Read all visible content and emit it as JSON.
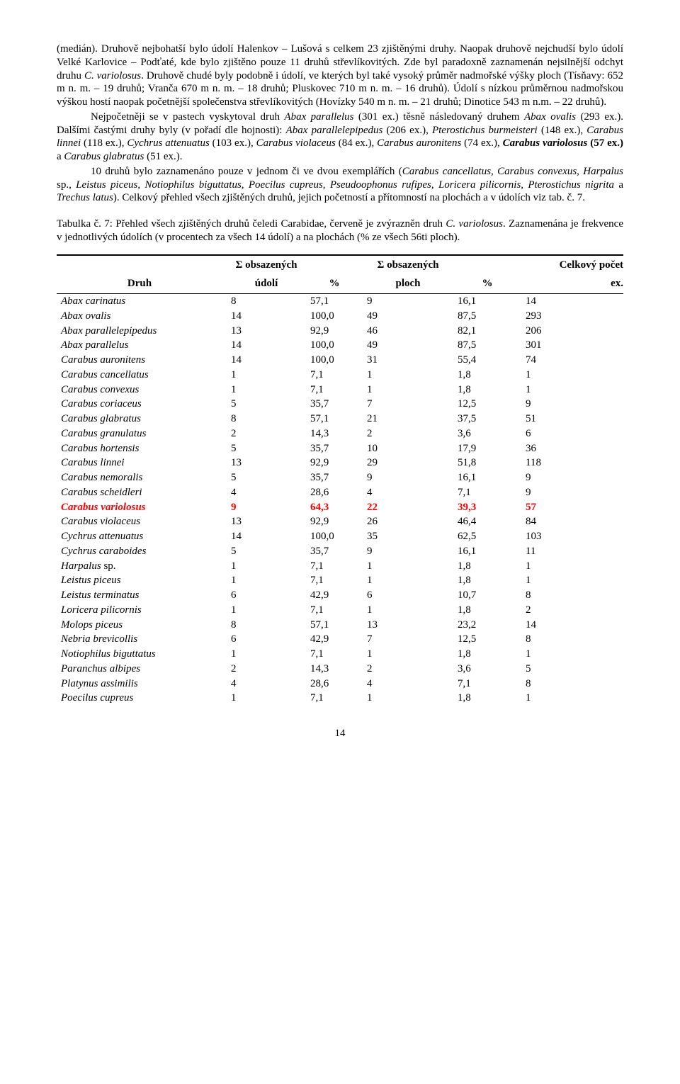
{
  "paragraphs": {
    "p1_prefix": "(medián). Druhově nejbohatší bylo údolí Halenkov – Lušová s celkem 23 zjištěnými druhy. Naopak druhově nejchudší bylo údolí Velké Karlovice – Podťaté, kde bylo zjištěno pouze 11 druhů střevlíkovitých. Zde byl paradoxně zaznamenán nejsilnější odchyt druhu ",
    "p1_sp": "C. variolosus",
    "p1_suffix": ". Druhově chudé byly podobně i údolí, ve kterých byl také vysoký průměr nadmořské výšky ploch (Tísňavy: 652 m n. m. – 19 druhů; Vranča 670 m n. m. – 18 druhů; Pluskovec 710 m n. m. – 16 druhů). Údolí s nízkou průměrnou nadmořskou výškou hostí naopak početnější společenstva střevlíkovitých (Hovízky 540 m n. m. – 21 druhů; Dinotice 543 m n.m. – 22 druhů).",
    "p2a": "Nejpočetněji se v pastech vyskytoval druh ",
    "p2_sp1": "Abax parallelus",
    "p2b": " (301 ex.) těsně následovaný druhem ",
    "p2_sp2": "Abax ovalis",
    "p2c": " (293 ex.). Dalšími častými druhy byly (v pořadí dle hojnosti): ",
    "p2_sp3": "Abax parallelepipedus",
    "p2d": " (206 ex.), ",
    "p2_sp4": "Pterostichus burmeisteri",
    "p2e": " (148 ex.), ",
    "p2_sp5": "Carabus linnei",
    "p2f": " (118 ex.), ",
    "p2_sp6": "Cychrus attenuatus",
    "p2g": " (103 ex.), ",
    "p2_sp7": "Carabus violaceus",
    "p2h": " (84 ex.), ",
    "p2_sp8": "Carabus auronitens",
    "p2i": " (74 ex.), ",
    "p2_sp9": "Carabus variolosus",
    "p2j": " (57 ex.)",
    "p2k": " a ",
    "p2_sp10": "Carabus glabratus",
    "p2l": " (51 ex.).",
    "p3a": "10 druhů bylo zaznamenáno pouze v jednom či ve dvou exemplářích (",
    "p3_list": "Carabus cancellatus, Carabus convexus, Harpalus ",
    "p3_sp": "sp.",
    "p3_list2": ", Leistus piceus, Notiophilus biguttatus, Poecilus cupreus, Pseudoophonus rufipes, Loricera pilicornis, Pterostichus nigrita ",
    "p3_a": "a ",
    "p3_last": "Trechus latus",
    "p3b": "). Celkový přehled všech zjištěných druhů, jejich početností a přítomností na plochách a v údolích viz tab. č. 7.",
    "captionA": "Tabulka č. 7: Přehled všech zjištěných druhů čeledi Carabidae, červeně je zvýrazněn druh ",
    "caption_sp": "C. variolosus",
    "captionB": ". Zaznamenána je frekvence v jednotlivých údolích (v procentech za všech 14 údolí) a na plochách (% ze všech 56ti ploch)."
  },
  "table": {
    "headers": {
      "druh": "Druh",
      "sum_udoli_l1": "Σ obsazených",
      "sum_udoli_l2": "údolí",
      "pct1": "%",
      "sum_ploch_l1": "Σ obsazených",
      "sum_ploch_l2": "ploch",
      "pct2": "%",
      "ex_l1": "Celkový počet",
      "ex_l2": "ex."
    },
    "rows": [
      {
        "hl": false,
        "sp": "Abax carinatus",
        "u": "8",
        "up": "57,1",
        "p": "9",
        "pp": "16,1",
        "ex": "14"
      },
      {
        "hl": false,
        "sp": "Abax ovalis",
        "u": "14",
        "up": "100,0",
        "p": "49",
        "pp": "87,5",
        "ex": "293"
      },
      {
        "hl": false,
        "sp": "Abax parallelepipedus",
        "u": "13",
        "up": "92,9",
        "p": "46",
        "pp": "82,1",
        "ex": "206"
      },
      {
        "hl": false,
        "sp": "Abax parallelus",
        "u": "14",
        "up": "100,0",
        "p": "49",
        "pp": "87,5",
        "ex": "301"
      },
      {
        "hl": false,
        "sp": "Carabus auronitens",
        "u": "14",
        "up": "100,0",
        "p": "31",
        "pp": "55,4",
        "ex": "74"
      },
      {
        "hl": false,
        "sp": "Carabus cancellatus",
        "u": "1",
        "up": "7,1",
        "p": "1",
        "pp": "1,8",
        "ex": "1"
      },
      {
        "hl": false,
        "sp": "Carabus convexus",
        "u": "1",
        "up": "7,1",
        "p": "1",
        "pp": "1,8",
        "ex": "1"
      },
      {
        "hl": false,
        "sp": "Carabus coriaceus",
        "u": "5",
        "up": "35,7",
        "p": "7",
        "pp": "12,5",
        "ex": "9"
      },
      {
        "hl": false,
        "sp": "Carabus glabratus",
        "u": "8",
        "up": "57,1",
        "p": "21",
        "pp": "37,5",
        "ex": "51"
      },
      {
        "hl": false,
        "sp": "Carabus granulatus",
        "u": "2",
        "up": "14,3",
        "p": "2",
        "pp": "3,6",
        "ex": "6"
      },
      {
        "hl": false,
        "sp": "Carabus hortensis",
        "u": "5",
        "up": "35,7",
        "p": "10",
        "pp": "17,9",
        "ex": "36"
      },
      {
        "hl": false,
        "sp": "Carabus linnei",
        "u": "13",
        "up": "92,9",
        "p": "29",
        "pp": "51,8",
        "ex": "118"
      },
      {
        "hl": false,
        "sp": "Carabus nemoralis",
        "u": "5",
        "up": "35,7",
        "p": "9",
        "pp": "16,1",
        "ex": "9"
      },
      {
        "hl": false,
        "sp": "Carabus scheidleri",
        "u": "4",
        "up": "28,6",
        "p": "4",
        "pp": "7,1",
        "ex": "9"
      },
      {
        "hl": true,
        "sp": "Carabus variolosus",
        "u": "9",
        "up": "64,3",
        "p": "22",
        "pp": "39,3",
        "ex": "57"
      },
      {
        "hl": false,
        "sp": "Carabus violaceus",
        "u": "13",
        "up": "92,9",
        "p": "26",
        "pp": "46,4",
        "ex": "84"
      },
      {
        "hl": false,
        "sp": "Cychrus attenuatus",
        "u": "14",
        "up": "100,0",
        "p": "35",
        "pp": "62,5",
        "ex": "103"
      },
      {
        "hl": false,
        "sp": "Cychrus caraboides",
        "u": "5",
        "up": "35,7",
        "p": "9",
        "pp": "16,1",
        "ex": "11"
      },
      {
        "hl": false,
        "sp": "Harpalus sp.",
        "u": "1",
        "up": "7,1",
        "p": "1",
        "pp": "1,8",
        "ex": "1",
        "sp_suffix": " sp.",
        "sp_name": "Harpalus"
      },
      {
        "hl": false,
        "sp": "Leistus piceus",
        "u": "1",
        "up": "7,1",
        "p": "1",
        "pp": "1,8",
        "ex": "1"
      },
      {
        "hl": false,
        "sp": "Leistus terminatus",
        "u": "6",
        "up": "42,9",
        "p": "6",
        "pp": "10,7",
        "ex": "8"
      },
      {
        "hl": false,
        "sp": "Loricera pilicornis",
        "u": "1",
        "up": "7,1",
        "p": "1",
        "pp": "1,8",
        "ex": "2"
      },
      {
        "hl": false,
        "sp": "Molops piceus",
        "u": "8",
        "up": "57,1",
        "p": "13",
        "pp": "23,2",
        "ex": "14"
      },
      {
        "hl": false,
        "sp": "Nebria brevicollis",
        "u": "6",
        "up": "42,9",
        "p": "7",
        "pp": "12,5",
        "ex": "8"
      },
      {
        "hl": false,
        "sp": "Notiophilus biguttatus",
        "u": "1",
        "up": "7,1",
        "p": "1",
        "pp": "1,8",
        "ex": "1"
      },
      {
        "hl": false,
        "sp": "Paranchus albipes",
        "u": "2",
        "up": "14,3",
        "p": "2",
        "pp": "3,6",
        "ex": "5"
      },
      {
        "hl": false,
        "sp": "Platynus assimilis",
        "u": "4",
        "up": "28,6",
        "p": "4",
        "pp": "7,1",
        "ex": "8"
      },
      {
        "hl": false,
        "sp": "Poecilus cupreus",
        "u": "1",
        "up": "7,1",
        "p": "1",
        "pp": "1,8",
        "ex": "1"
      }
    ],
    "highlight_color": "#ff0000"
  },
  "page_number": "14"
}
